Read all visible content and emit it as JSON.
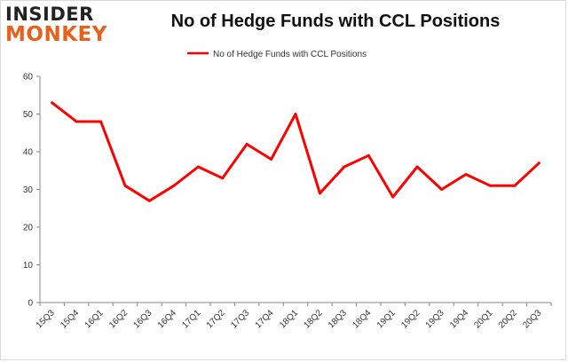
{
  "branding": {
    "logo_top": "INSIDER",
    "logo_bottom": "MONKEY"
  },
  "chart_data": {
    "type": "line",
    "title": "No of Hedge Funds with CCL Positions",
    "xlabel": "",
    "ylabel": "",
    "ylim": [
      0,
      60
    ],
    "yticks": [
      0,
      10,
      20,
      30,
      40,
      50,
      60
    ],
    "grid": false,
    "legend_position": "top-center",
    "categories": [
      "15Q3",
      "15Q4",
      "16Q1",
      "16Q2",
      "16Q3",
      "16Q4",
      "17Q1",
      "17Q2",
      "17Q3",
      "17Q4",
      "18Q1",
      "18Q2",
      "18Q3",
      "18Q4",
      "19Q1",
      "19Q2",
      "19Q3",
      "19Q4",
      "20Q1",
      "20Q2",
      "20Q3"
    ],
    "series": [
      {
        "name": "No of Hedge Funds with CCL Positions",
        "color": "#ff0000",
        "values": [
          53,
          48,
          48,
          31,
          27,
          31,
          36,
          33,
          42,
          38,
          50,
          29,
          36,
          39,
          28,
          36,
          30,
          34,
          31,
          31,
          37
        ]
      }
    ]
  }
}
